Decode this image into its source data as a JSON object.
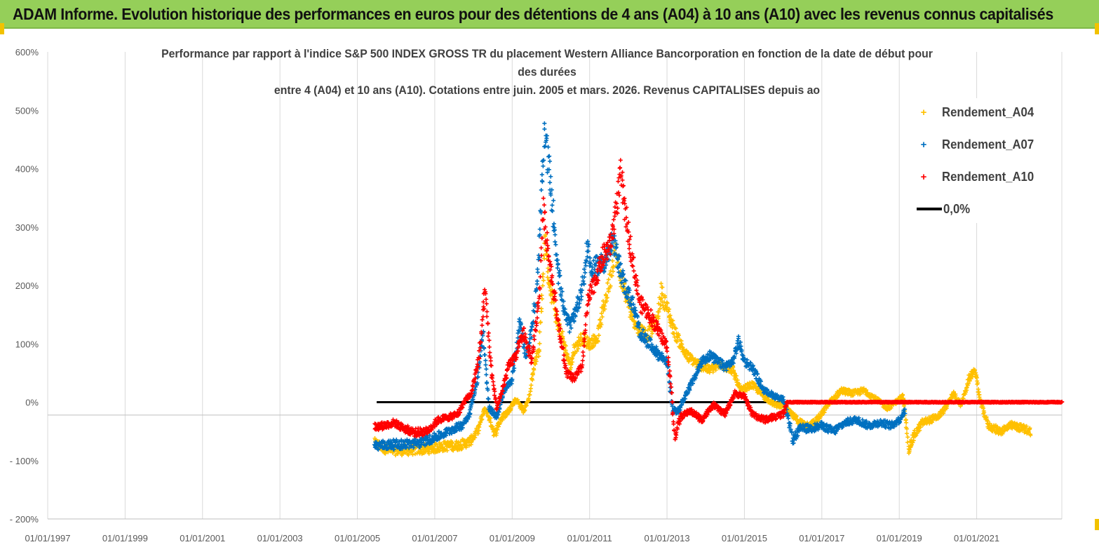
{
  "header": {
    "title": "ADAM Informe. Evolution historique des performances en euros pour des détentions de 4 ans (A04) à 10 ans (A10) avec les revenus connus capitalisés"
  },
  "colors": {
    "header_bg": "#95cf59",
    "a04": "#ffc000",
    "a07": "#0070c0",
    "a10": "#ff0000",
    "zero": "#000000"
  },
  "chart_data": {
    "type": "scatter",
    "title_lines": [
      "Performance par rapport à l'indice S&P 500 INDEX GROSS TR  du placement Western  Alliance Bancorporation en fonction de la date de début pour",
      "des durées",
      "entre 4 (A04) et 10 ans (A10). Cotations entre juin. 2005 et mars. 2026. Revenus CAPITALISES depuis ao"
    ],
    "xlabel": "",
    "ylabel": "",
    "x_range": [
      1997.0,
      2023.2
    ],
    "ylim": [
      -200,
      600
    ],
    "y_ticks": [
      600,
      500,
      400,
      300,
      200,
      100,
      0,
      -100,
      -200
    ],
    "y_tick_labels": [
      "600%",
      "500%",
      "400%",
      "300%",
      "200%",
      "100%",
      "0%",
      "- 100%",
      "- 200%"
    ],
    "x_ticks": [
      1997,
      1999,
      2001,
      2003,
      2005,
      2007,
      2009,
      2011,
      2013,
      2015,
      2017,
      2019,
      2021
    ],
    "x_tick_labels": [
      "01/01/1997",
      "01/01/1999",
      "01/01/2001",
      "01/01/2003",
      "01/01/2005",
      "01/01/2007",
      "01/01/2009",
      "01/01/2011",
      "01/01/2013",
      "01/01/2015",
      "01/01/2017",
      "01/01/2019",
      "01/01/2021"
    ],
    "grid": true,
    "legend_position": "top-right",
    "series": [
      {
        "name": "Rendement_A04",
        "color": "#ffc000",
        "points": [
          [
            2005.45,
            -70
          ],
          [
            2005.8,
            -82
          ],
          [
            2006.3,
            -82
          ],
          [
            2006.8,
            -80
          ],
          [
            2007.3,
            -75
          ],
          [
            2007.6,
            -74
          ],
          [
            2007.9,
            -68
          ],
          [
            2008.1,
            -50
          ],
          [
            2008.3,
            -10
          ],
          [
            2008.45,
            -35
          ],
          [
            2008.55,
            -55
          ],
          [
            2008.7,
            -30
          ],
          [
            2008.9,
            -15
          ],
          [
            2009.1,
            5
          ],
          [
            2009.3,
            -15
          ],
          [
            2009.45,
            10
          ],
          [
            2009.55,
            60
          ],
          [
            2009.7,
            90
          ],
          [
            2009.85,
            280
          ],
          [
            2009.95,
            200
          ],
          [
            2010.05,
            180
          ],
          [
            2010.15,
            140
          ],
          [
            2010.3,
            110
          ],
          [
            2010.5,
            60
          ],
          [
            2010.6,
            90
          ],
          [
            2010.8,
            110
          ],
          [
            2011.0,
            100
          ],
          [
            2011.2,
            110
          ],
          [
            2011.35,
            160
          ],
          [
            2011.5,
            200
          ],
          [
            2011.65,
            260
          ],
          [
            2011.8,
            215
          ],
          [
            2012.0,
            170
          ],
          [
            2012.2,
            130
          ],
          [
            2012.5,
            115
          ],
          [
            2012.75,
            140
          ],
          [
            2012.85,
            190
          ],
          [
            2013.0,
            160
          ],
          [
            2013.2,
            120
          ],
          [
            2013.5,
            80
          ],
          [
            2013.8,
            65
          ],
          [
            2014.1,
            55
          ],
          [
            2014.4,
            65
          ],
          [
            2014.7,
            55
          ],
          [
            2014.9,
            20
          ],
          [
            2015.2,
            30
          ],
          [
            2015.5,
            10
          ],
          [
            2015.8,
            -5
          ],
          [
            2016.0,
            -5
          ],
          [
            2016.2,
            -20
          ],
          [
            2016.45,
            -35
          ],
          [
            2016.7,
            -40
          ],
          [
            2016.95,
            -25
          ],
          [
            2017.2,
            0
          ],
          [
            2017.5,
            20
          ],
          [
            2017.8,
            15
          ],
          [
            2018.1,
            20
          ],
          [
            2018.4,
            5
          ],
          [
            2018.7,
            -10
          ],
          [
            2018.9,
            0
          ],
          [
            2019.1,
            10
          ],
          [
            2019.25,
            -80
          ],
          [
            2019.4,
            -55
          ],
          [
            2019.6,
            -35
          ],
          [
            2019.8,
            -30
          ],
          [
            2020.0,
            -25
          ],
          [
            2020.2,
            -10
          ],
          [
            2020.4,
            15
          ],
          [
            2020.6,
            -5
          ],
          [
            2020.8,
            40
          ],
          [
            2020.95,
            55
          ],
          [
            2021.1,
            0
          ],
          [
            2021.3,
            -40
          ],
          [
            2021.6,
            -50
          ],
          [
            2021.9,
            -40
          ],
          [
            2022.2,
            -45
          ],
          [
            2022.4,
            -50
          ]
        ]
      },
      {
        "name": "Rendement_A07",
        "color": "#0070c0",
        "points": [
          [
            2005.45,
            -75
          ],
          [
            2005.8,
            -73
          ],
          [
            2006.2,
            -72
          ],
          [
            2006.6,
            -70
          ],
          [
            2006.9,
            -63
          ],
          [
            2007.2,
            -55
          ],
          [
            2007.5,
            -45
          ],
          [
            2007.7,
            -40
          ],
          [
            2007.9,
            -20
          ],
          [
            2008.1,
            40
          ],
          [
            2008.25,
            120
          ],
          [
            2008.4,
            -10
          ],
          [
            2008.6,
            -25
          ],
          [
            2008.8,
            20
          ],
          [
            2009.0,
            40
          ],
          [
            2009.2,
            140
          ],
          [
            2009.35,
            80
          ],
          [
            2009.5,
            120
          ],
          [
            2009.65,
            200
          ],
          [
            2009.75,
            340
          ],
          [
            2009.85,
            460
          ],
          [
            2009.95,
            400
          ],
          [
            2010.05,
            330
          ],
          [
            2010.2,
            220
          ],
          [
            2010.35,
            150
          ],
          [
            2010.5,
            130
          ],
          [
            2010.7,
            170
          ],
          [
            2010.85,
            210
          ],
          [
            2010.95,
            270
          ],
          [
            2011.05,
            220
          ],
          [
            2011.2,
            235
          ],
          [
            2011.4,
            240
          ],
          [
            2011.6,
            275
          ],
          [
            2011.75,
            240
          ],
          [
            2011.9,
            200
          ],
          [
            2012.1,
            170
          ],
          [
            2012.3,
            120
          ],
          [
            2012.55,
            100
          ],
          [
            2012.8,
            80
          ],
          [
            2013.0,
            70
          ],
          [
            2013.15,
            -15
          ],
          [
            2013.3,
            -15
          ],
          [
            2013.5,
            15
          ],
          [
            2013.7,
            40
          ],
          [
            2013.9,
            70
          ],
          [
            2014.1,
            80
          ],
          [
            2014.3,
            70
          ],
          [
            2014.5,
            60
          ],
          [
            2014.7,
            70
          ],
          [
            2014.85,
            105
          ],
          [
            2015.0,
            70
          ],
          [
            2015.2,
            60
          ],
          [
            2015.5,
            20
          ],
          [
            2015.8,
            10
          ],
          [
            2016.0,
            5
          ],
          [
            2016.1,
            -20
          ],
          [
            2016.25,
            -65
          ],
          [
            2016.45,
            -45
          ],
          [
            2016.7,
            -45
          ],
          [
            2017.0,
            -40
          ],
          [
            2017.3,
            -50
          ],
          [
            2017.6,
            -35
          ],
          [
            2017.9,
            -30
          ],
          [
            2018.2,
            -40
          ],
          [
            2018.5,
            -35
          ],
          [
            2018.8,
            -40
          ],
          [
            2019.0,
            -30
          ],
          [
            2019.15,
            -15
          ]
        ]
      },
      {
        "name": "Rendement_A10",
        "color": "#ff0000",
        "points": [
          [
            2005.45,
            -42
          ],
          [
            2005.7,
            -40
          ],
          [
            2005.95,
            -35
          ],
          [
            2006.2,
            -45
          ],
          [
            2006.5,
            -52
          ],
          [
            2006.8,
            -50
          ],
          [
            2007.1,
            -30
          ],
          [
            2007.4,
            -25
          ],
          [
            2007.6,
            -20
          ],
          [
            2007.8,
            5
          ],
          [
            2007.95,
            15
          ],
          [
            2008.15,
            80
          ],
          [
            2008.3,
            190
          ],
          [
            2008.45,
            60
          ],
          [
            2008.6,
            -10
          ],
          [
            2008.75,
            20
          ],
          [
            2008.9,
            60
          ],
          [
            2009.1,
            80
          ],
          [
            2009.3,
            120
          ],
          [
            2009.5,
            70
          ],
          [
            2009.7,
            180
          ],
          [
            2009.8,
            330
          ],
          [
            2009.95,
            250
          ],
          [
            2010.1,
            180
          ],
          [
            2010.25,
            110
          ],
          [
            2010.4,
            50
          ],
          [
            2010.6,
            40
          ],
          [
            2010.8,
            60
          ],
          [
            2010.95,
            170
          ],
          [
            2011.15,
            210
          ],
          [
            2011.35,
            250
          ],
          [
            2011.55,
            270
          ],
          [
            2011.7,
            340
          ],
          [
            2011.8,
            390
          ],
          [
            2011.95,
            310
          ],
          [
            2012.1,
            250
          ],
          [
            2012.3,
            170
          ],
          [
            2012.55,
            150
          ],
          [
            2012.8,
            120
          ],
          [
            2013.0,
            95
          ],
          [
            2013.1,
            30
          ],
          [
            2013.2,
            -60
          ],
          [
            2013.35,
            -25
          ],
          [
            2013.6,
            -15
          ],
          [
            2013.9,
            -30
          ],
          [
            2014.2,
            -5
          ],
          [
            2014.5,
            -20
          ],
          [
            2014.75,
            15
          ],
          [
            2015.0,
            10
          ],
          [
            2015.2,
            -20
          ],
          [
            2015.5,
            -30
          ],
          [
            2015.8,
            -25
          ],
          [
            2016.0,
            -20
          ],
          [
            2016.1,
            0
          ],
          [
            2016.5,
            0
          ],
          [
            2017.0,
            0
          ],
          [
            2017.5,
            0
          ],
          [
            2018.0,
            0
          ],
          [
            2018.5,
            0
          ],
          [
            2019.0,
            0
          ],
          [
            2019.5,
            0
          ],
          [
            2020.0,
            0
          ],
          [
            2020.5,
            0
          ],
          [
            2021.0,
            0
          ],
          [
            2021.5,
            0
          ],
          [
            2022.0,
            0
          ],
          [
            2022.5,
            0
          ],
          [
            2023.0,
            0
          ],
          [
            2023.2,
            0
          ]
        ]
      },
      {
        "name": "0,0%",
        "color": "#000000",
        "points": [
          [
            2005.5,
            0
          ],
          [
            2016.2,
            0
          ]
        ]
      }
    ]
  }
}
